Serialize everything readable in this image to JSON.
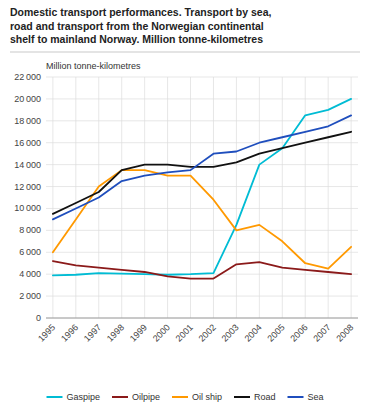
{
  "chart_data": {
    "type": "line",
    "title": "Domestic transport performances. Transport by sea,\nroad and transport from the Norwegian continental\nshelf to mainland Norway. Million tonne-kilometres",
    "y_label": "Million tonne-kilometres",
    "x": [
      1995,
      1996,
      1997,
      1998,
      1999,
      2000,
      2001,
      2002,
      2003,
      2004,
      2005,
      2006,
      2007,
      2008
    ],
    "xlim": [
      1994.7,
      2008.3
    ],
    "xticks": [
      1995,
      1996,
      1997,
      1998,
      1999,
      2000,
      2001,
      2002,
      2003,
      2004,
      2005,
      2006,
      2007,
      2008
    ],
    "ylim": [
      0,
      22000
    ],
    "yticks": [
      0,
      {
        "value": 2000,
        "label": "2 000"
      },
      {
        "value": 4000,
        "label": "4 000"
      },
      {
        "value": 6000,
        "label": "6 000"
      },
      {
        "value": 8000,
        "label": "8 000"
      },
      {
        "value": 10000,
        "label": "10 000"
      },
      {
        "value": 12000,
        "label": "12 000"
      },
      {
        "value": 14000,
        "label": "14 000"
      },
      {
        "value": 16000,
        "label": "16 000"
      },
      {
        "value": 18000,
        "label": "18 000"
      },
      {
        "value": 20000,
        "label": "20 000"
      },
      {
        "value": 22000,
        "label": "22 000"
      }
    ],
    "grid": true,
    "legend": "bottom",
    "series": [
      {
        "name": "Gaspipe",
        "color": "#00bcd4",
        "values": [
          3900,
          3950,
          4100,
          4050,
          4000,
          3950,
          4000,
          4100,
          8500,
          14000,
          15500,
          18500,
          19000,
          20000
        ]
      },
      {
        "name": "Oilpipe",
        "color": "#8b1a1a",
        "values": [
          5200,
          4800,
          4600,
          4400,
          4200,
          3800,
          3600,
          3600,
          4900,
          5100,
          4600,
          4400,
          4200,
          4000
        ]
      },
      {
        "name": "Oil ship",
        "color": "#ff9900",
        "values": [
          6000,
          9000,
          12000,
          13500,
          13500,
          13000,
          13000,
          10800,
          8000,
          8500,
          7000,
          5000,
          4500,
          6500
        ]
      },
      {
        "name": "Road",
        "color": "#111111",
        "values": [
          9500,
          10500,
          11500,
          13500,
          14000,
          14000,
          13800,
          13800,
          14200,
          15000,
          15500,
          16000,
          16500,
          17000
        ]
      },
      {
        "name": "Sea",
        "color": "#1f4ebd",
        "values": [
          9000,
          10000,
          11000,
          12500,
          13000,
          13300,
          13500,
          15000,
          15200,
          16000,
          16500,
          17000,
          17500,
          18500
        ]
      }
    ]
  }
}
